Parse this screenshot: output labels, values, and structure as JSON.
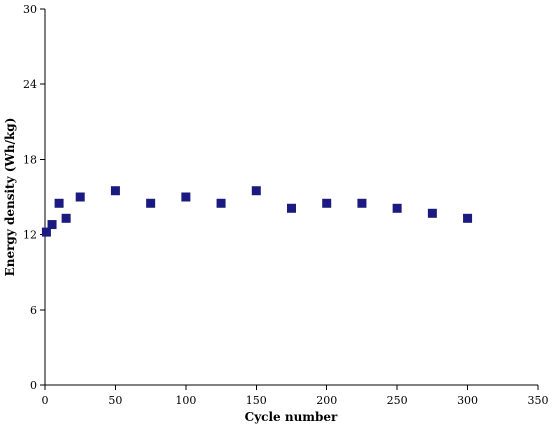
{
  "chart_data": {
    "type": "scatter",
    "xlabel": "Cycle number",
    "ylabel": "Energy density (Wh/kg)",
    "xlim": [
      0,
      350
    ],
    "ylim": [
      0,
      30
    ],
    "xticks": [
      0,
      50,
      100,
      150,
      200,
      250,
      300,
      350
    ],
    "yticks": [
      0,
      6,
      12,
      18,
      24,
      30
    ],
    "grid": false,
    "marker": "square",
    "marker_color": "#1a1a80",
    "series": [
      {
        "points": [
          {
            "x": 1,
            "y": 12.2
          },
          {
            "x": 5,
            "y": 12.8
          },
          {
            "x": 10,
            "y": 14.5
          },
          {
            "x": 15,
            "y": 13.3
          },
          {
            "x": 25,
            "y": 15.0
          },
          {
            "x": 50,
            "y": 15.5
          },
          {
            "x": 75,
            "y": 14.5
          },
          {
            "x": 100,
            "y": 15.0
          },
          {
            "x": 125,
            "y": 14.5
          },
          {
            "x": 150,
            "y": 15.5
          },
          {
            "x": 175,
            "y": 14.1
          },
          {
            "x": 200,
            "y": 14.5
          },
          {
            "x": 225,
            "y": 14.5
          },
          {
            "x": 250,
            "y": 14.1
          },
          {
            "x": 275,
            "y": 13.7
          },
          {
            "x": 300,
            "y": 13.3
          }
        ]
      }
    ]
  }
}
